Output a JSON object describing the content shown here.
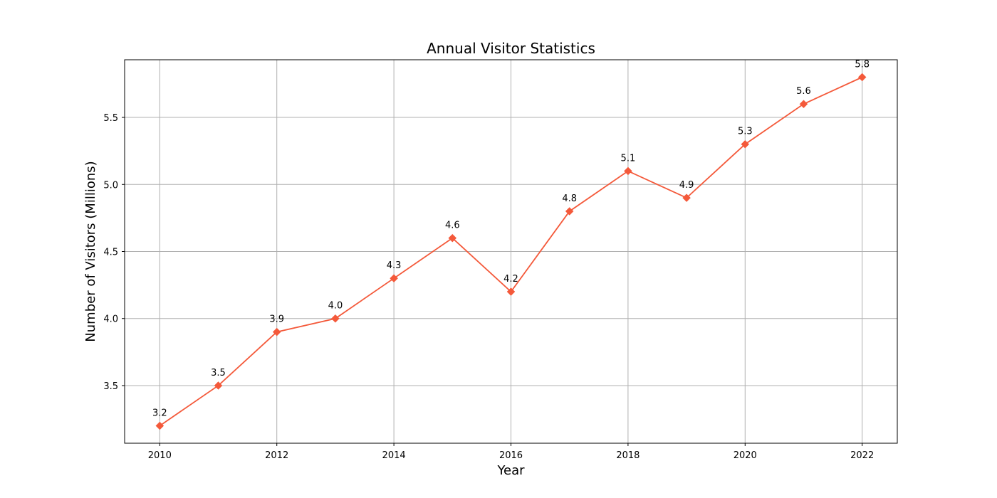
{
  "chart_data": {
    "type": "line",
    "title": "Annual Visitor Statistics",
    "xlabel": "Year",
    "ylabel": "Number of Visitors (Millions)",
    "x": [
      2010,
      2011,
      2012,
      2013,
      2014,
      2015,
      2016,
      2017,
      2018,
      2019,
      2020,
      2021,
      2022
    ],
    "series": [
      {
        "values": [
          3.2,
          3.5,
          3.9,
          4.0,
          4.3,
          4.6,
          4.2,
          4.8,
          5.1,
          4.9,
          5.3,
          5.6,
          5.8
        ],
        "labels": [
          "3.2",
          "3.5",
          "3.9",
          "4.0",
          "4.3",
          "4.6",
          "4.2",
          "4.8",
          "5.1",
          "4.9",
          "5.3",
          "5.6",
          "5.8"
        ],
        "color": "#f4593a",
        "marker": "diamond"
      }
    ],
    "xticks": [
      "2010",
      "2012",
      "2014",
      "2016",
      "2018",
      "2020",
      "2022"
    ],
    "yticks": [
      "3.5",
      "4.0",
      "4.5",
      "5.0",
      "5.5"
    ],
    "xlim": [
      2009.4,
      2022.6
    ],
    "ylim": [
      3.07,
      5.93
    ],
    "grid": true
  }
}
